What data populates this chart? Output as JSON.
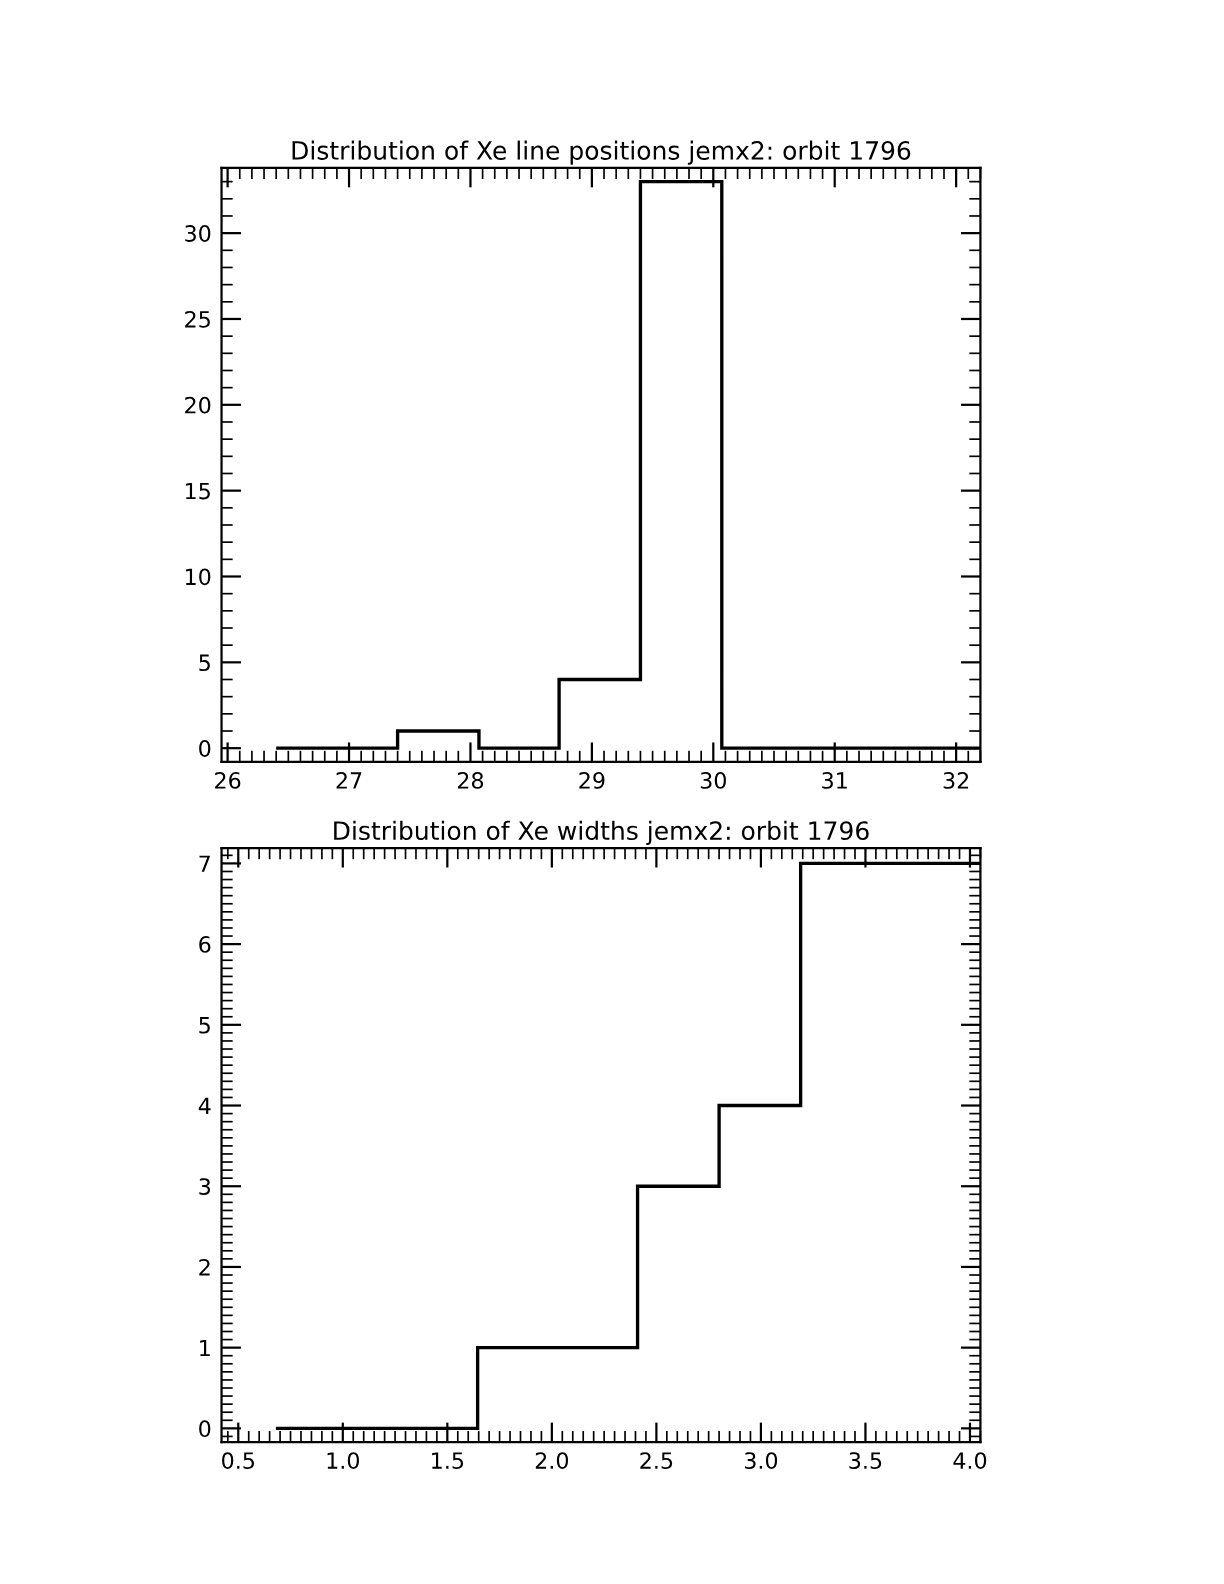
{
  "chart_data": [
    {
      "type": "histogram",
      "title": "Distribution of Xe line positions jemx2: orbit 1796",
      "bins": [
        26.4,
        27.4,
        28.07,
        28.73,
        29.4,
        30.07,
        32.2
      ],
      "values": [
        0,
        1,
        0,
        4,
        33,
        0
      ],
      "color": "#000000",
      "xlim": [
        25.95,
        32.2
      ],
      "xticks": [
        26,
        27,
        28,
        29,
        30,
        31,
        32
      ],
      "ylim": [
        -0.8,
        33.8
      ],
      "yticks": [
        0,
        5,
        10,
        15,
        20,
        25,
        30
      ]
    },
    {
      "type": "histogram",
      "title": "Distribution of Xe widths jemx2: orbit 1796",
      "bins": [
        0.68,
        1.645,
        2.41,
        2.8,
        3.19,
        4.05
      ],
      "values": [
        0,
        1,
        3,
        4,
        7
      ],
      "color": "#000000",
      "xlim": [
        0.42,
        4.05
      ],
      "xticks": [
        {
          "value": 0.5,
          "label": "0.5"
        },
        {
          "value": 1,
          "label": "1.0"
        },
        {
          "value": 1.5,
          "label": "1.5"
        },
        {
          "value": 2,
          "label": "2.0"
        },
        {
          "value": 2.5,
          "label": "2.5"
        },
        {
          "value": 3,
          "label": "3.0"
        },
        {
          "value": 3.5,
          "label": "3.5"
        },
        {
          "value": 4,
          "label": "4.0"
        }
      ],
      "ylim": [
        -0.17,
        7.19
      ],
      "yticks": [
        0,
        1,
        2,
        3,
        4,
        5,
        6,
        7
      ]
    }
  ]
}
